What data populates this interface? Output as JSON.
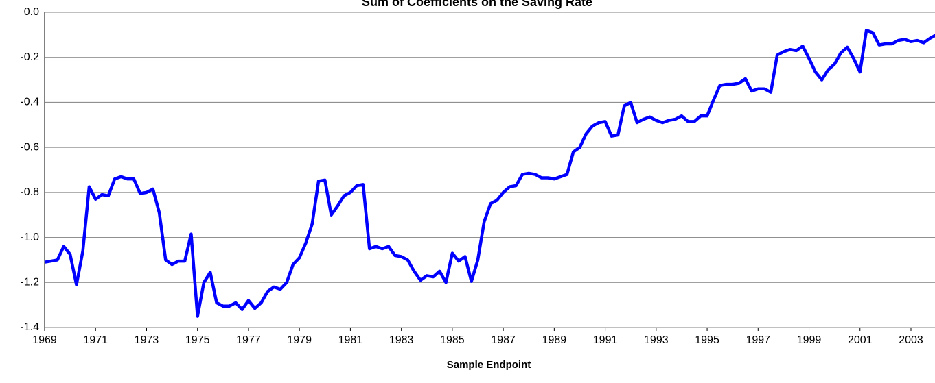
{
  "chart_data": {
    "type": "line",
    "title": "Sum of Coefficients on the Saving Rate",
    "x_label": "Sample Endpoint",
    "x": [
      1969,
      1969.25,
      1969.5,
      1969.75,
      1970,
      1970.25,
      1970.5,
      1970.75,
      1971,
      1971.25,
      1971.5,
      1971.75,
      1972,
      1972.25,
      1972.5,
      1972.75,
      1973,
      1973.25,
      1973.5,
      1973.75,
      1974,
      1974.25,
      1974.5,
      1974.75,
      1975,
      1975.25,
      1975.5,
      1975.75,
      1976,
      1976.25,
      1976.5,
      1976.75,
      1977,
      1977.25,
      1977.5,
      1977.75,
      1978,
      1978.25,
      1978.5,
      1978.75,
      1979,
      1979.25,
      1979.5,
      1979.75,
      1980,
      1980.25,
      1980.5,
      1980.75,
      1981,
      1981.25,
      1981.5,
      1981.75,
      1982,
      1982.25,
      1982.5,
      1982.75,
      1983,
      1983.25,
      1983.5,
      1983.75,
      1984,
      1984.25,
      1984.5,
      1984.75,
      1985,
      1985.25,
      1985.5,
      1985.75,
      1986,
      1986.25,
      1986.5,
      1986.75,
      1987,
      1987.25,
      1987.5,
      1987.75,
      1988,
      1988.25,
      1988.5,
      1988.75,
      1989,
      1989.25,
      1989.5,
      1989.75,
      1990,
      1990.25,
      1990.5,
      1990.75,
      1991,
      1991.25,
      1991.5,
      1991.75,
      1992,
      1992.25,
      1992.5,
      1992.75,
      1993,
      1993.25,
      1993.5,
      1993.75,
      1994,
      1994.25,
      1994.5,
      1994.75,
      1995,
      1995.25,
      1995.5,
      1995.75,
      1996,
      1996.25,
      1996.5,
      1996.75,
      1997,
      1997.25,
      1997.5,
      1997.75,
      1998,
      1998.25,
      1998.5,
      1998.75,
      1999,
      1999.25,
      1999.5,
      1999.75,
      2000,
      2000.25,
      2000.5,
      2000.75,
      2001,
      2001.25,
      2001.5,
      2001.75,
      2002,
      2002.25,
      2002.5,
      2002.75,
      2003,
      2003.25,
      2003.5,
      2003.75,
      2004
    ],
    "series": [
      {
        "name": "Sum of coefficients",
        "color": "#0000ff",
        "values": [
          -1.11,
          -1.105,
          -1.1,
          -1.04,
          -1.075,
          -1.21,
          -1.06,
          -0.775,
          -0.83,
          -0.81,
          -0.815,
          -0.74,
          -0.73,
          -0.74,
          -0.74,
          -0.805,
          -0.8,
          -0.785,
          -0.89,
          -1.1,
          -1.12,
          -1.105,
          -1.105,
          -0.985,
          -1.35,
          -1.2,
          -1.155,
          -1.29,
          -1.305,
          -1.305,
          -1.29,
          -1.32,
          -1.28,
          -1.315,
          -1.29,
          -1.24,
          -1.22,
          -1.23,
          -1.2,
          -1.12,
          -1.09,
          -1.025,
          -0.94,
          -0.75,
          -0.745,
          -0.9,
          -0.86,
          -0.815,
          -0.8,
          -0.77,
          -0.765,
          -1.05,
          -1.04,
          -1.05,
          -1.04,
          -1.08,
          -1.085,
          -1.1,
          -1.15,
          -1.19,
          -1.17,
          -1.175,
          -1.15,
          -1.2,
          -1.07,
          -1.105,
          -1.085,
          -1.195,
          -1.1,
          -0.93,
          -0.85,
          -0.835,
          -0.8,
          -0.775,
          -0.77,
          -0.72,
          -0.715,
          -0.72,
          -0.735,
          -0.735,
          -0.74,
          -0.73,
          -0.72,
          -0.62,
          -0.6,
          -0.54,
          -0.505,
          -0.49,
          -0.485,
          -0.55,
          -0.545,
          -0.415,
          -0.4,
          -0.49,
          -0.475,
          -0.465,
          -0.48,
          -0.49,
          -0.48,
          -0.475,
          -0.46,
          -0.485,
          -0.485,
          -0.46,
          -0.46,
          -0.39,
          -0.325,
          -0.32,
          -0.32,
          -0.315,
          -0.295,
          -0.35,
          -0.34,
          -0.34,
          -0.355,
          -0.19,
          -0.175,
          -0.165,
          -0.17,
          -0.15,
          -0.205,
          -0.265,
          -0.3,
          -0.255,
          -0.23,
          -0.18,
          -0.155,
          -0.205,
          -0.265,
          -0.08,
          -0.09,
          -0.145,
          -0.14,
          -0.14,
          -0.125,
          -0.12,
          -0.13,
          -0.125,
          -0.135,
          -0.115,
          -0.1
        ]
      }
    ],
    "xlim": [
      1969,
      2004
    ],
    "xticks": [
      1969,
      1971,
      1973,
      1975,
      1977,
      1979,
      1981,
      1983,
      1985,
      1987,
      1989,
      1991,
      1993,
      1995,
      1997,
      1999,
      2001,
      2003
    ],
    "ylim": [
      -1.4,
      0
    ],
    "yticks": [
      {
        "value": 0,
        "label": "0.0"
      },
      -0.2,
      -0.4,
      -0.6,
      -0.8,
      {
        "value": -1,
        "label": "-1.0"
      },
      -1.2,
      -1.4
    ],
    "grid": true
  }
}
